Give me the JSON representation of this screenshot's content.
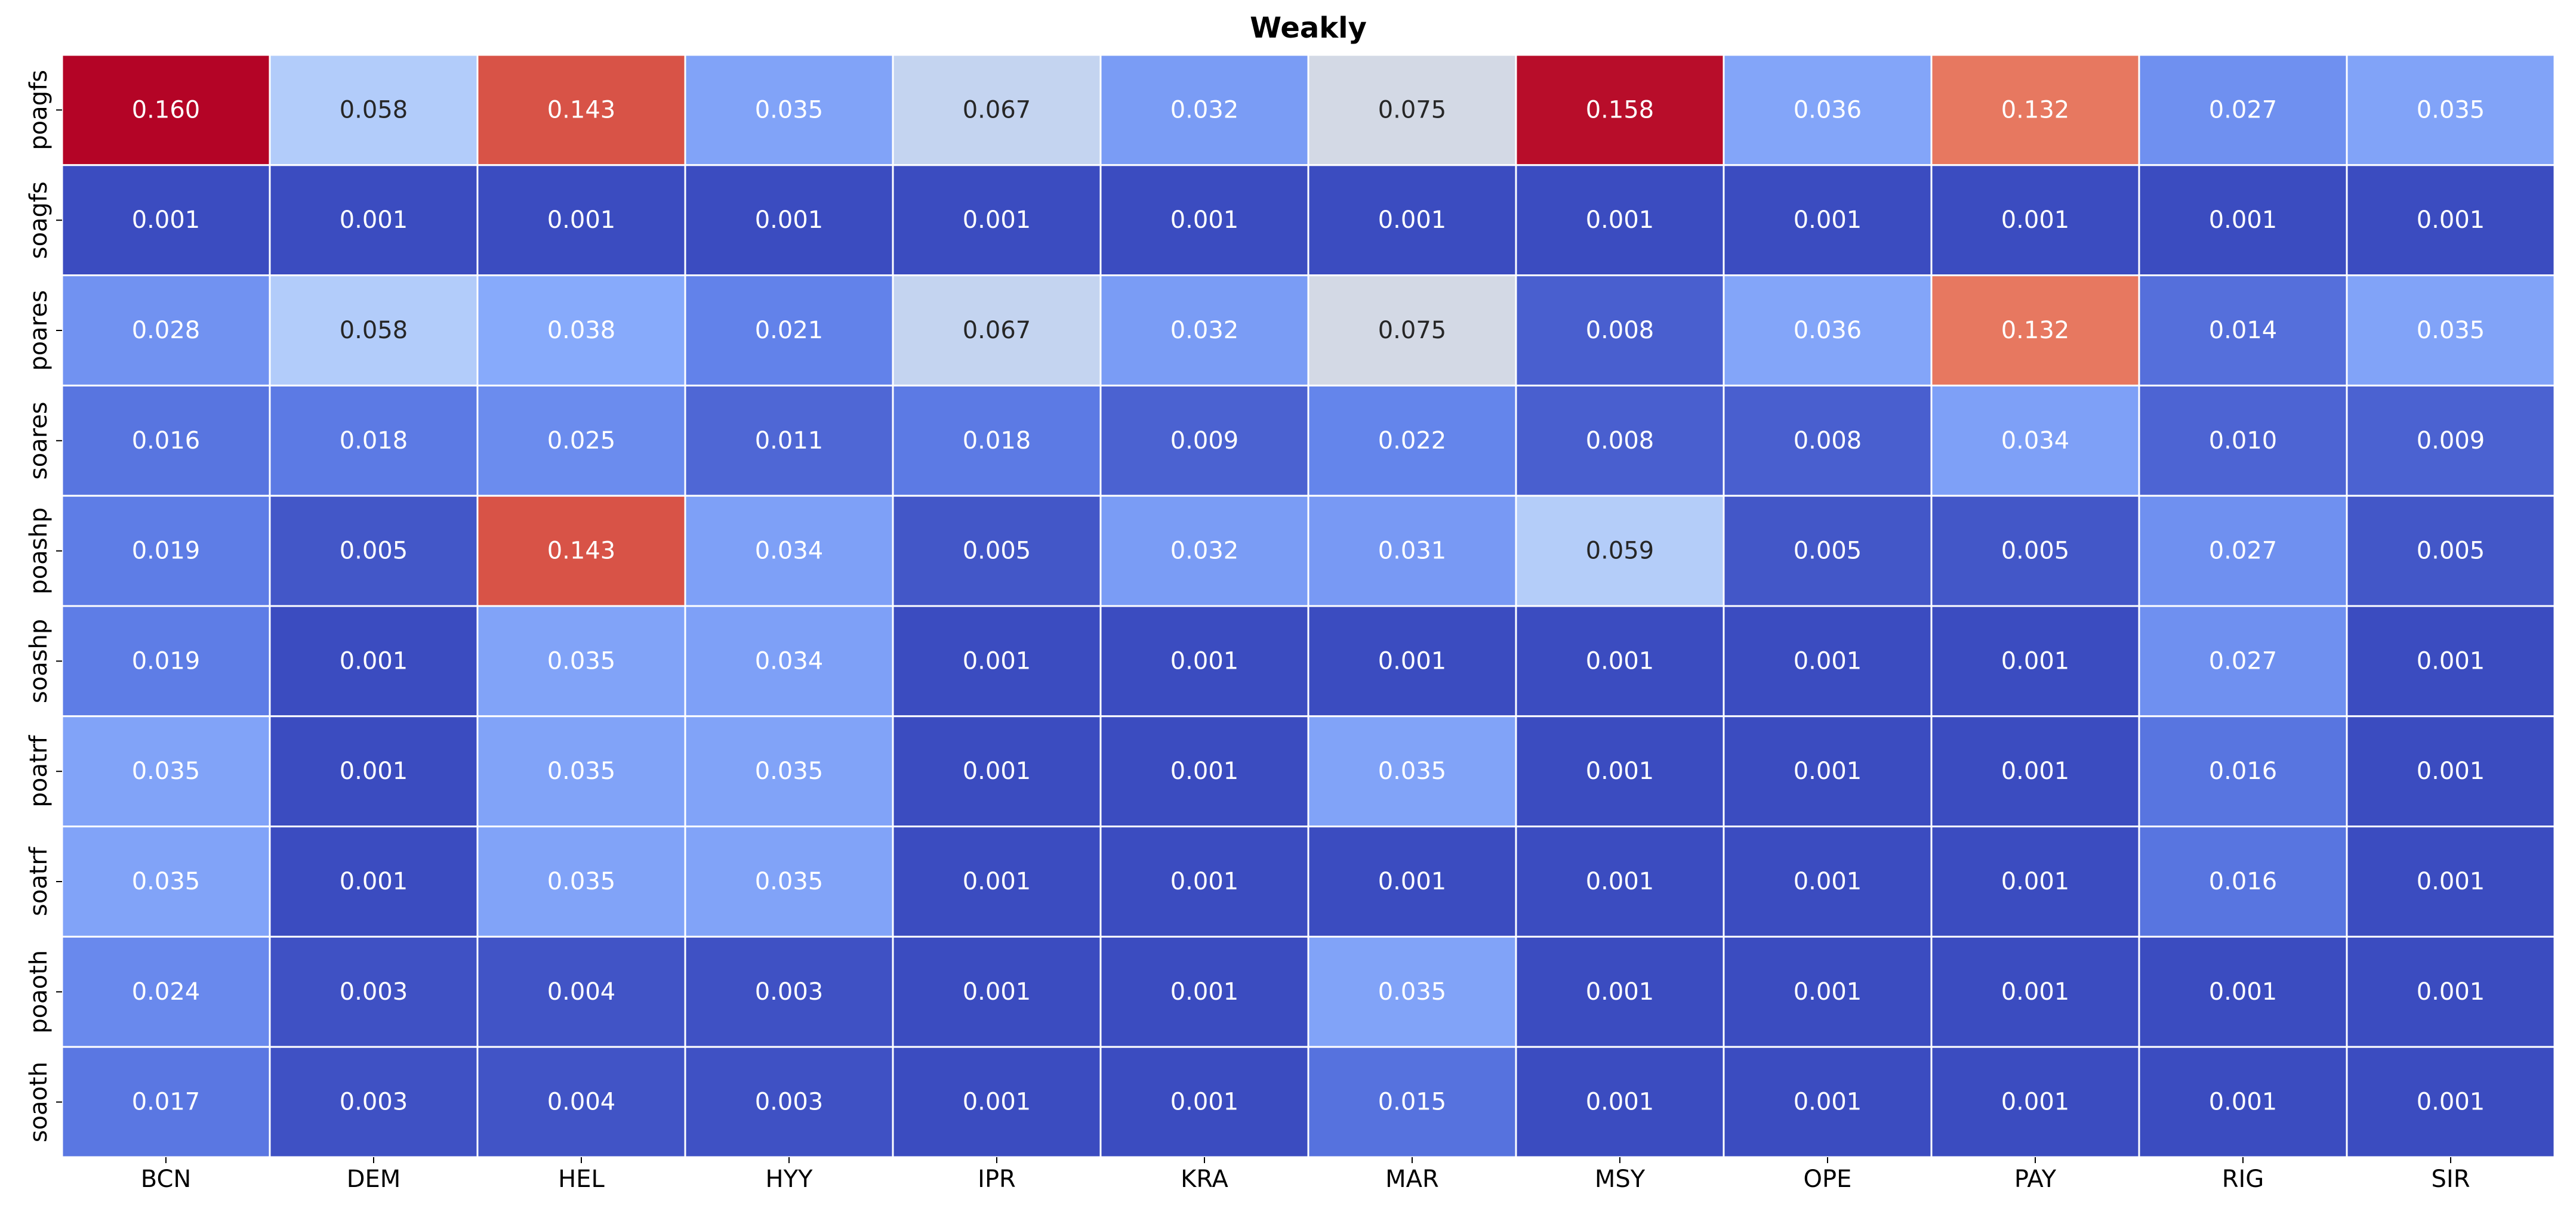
{
  "chart_data": {
    "type": "heatmap",
    "title": "Weakly",
    "xlabel": "",
    "ylabel": "",
    "colormap": "coolwarm",
    "value_range": [
      0.001,
      0.16
    ],
    "grid": false,
    "legend": "none",
    "colorbar": false,
    "cell_border_color": "#ffffff",
    "label_colors": {
      "dark": "#262626",
      "light": "#ffffff"
    },
    "columns": [
      "BCN",
      "DEM",
      "HEL",
      "HYY",
      "IPR",
      "KRA",
      "MAR",
      "MSY",
      "OPE",
      "PAY",
      "RIG",
      "SIR"
    ],
    "rows": [
      "poagfs",
      "soagfs",
      "poares",
      "soares",
      "poashp",
      "soashp",
      "poatrf",
      "soatrf",
      "poaoth",
      "soaoth"
    ],
    "values": [
      [
        0.16,
        0.058,
        0.143,
        0.035,
        0.067,
        0.032,
        0.075,
        0.158,
        0.036,
        0.132,
        0.027,
        0.035
      ],
      [
        0.001,
        0.001,
        0.001,
        0.001,
        0.001,
        0.001,
        0.001,
        0.001,
        0.001,
        0.001,
        0.001,
        0.001
      ],
      [
        0.028,
        0.058,
        0.038,
        0.021,
        0.067,
        0.032,
        0.075,
        0.008,
        0.036,
        0.132,
        0.014,
        0.035
      ],
      [
        0.016,
        0.018,
        0.025,
        0.011,
        0.018,
        0.009,
        0.022,
        0.008,
        0.008,
        0.034,
        0.01,
        0.009
      ],
      [
        0.019,
        0.005,
        0.143,
        0.034,
        0.005,
        0.032,
        0.031,
        0.059,
        0.005,
        0.005,
        0.027,
        0.005
      ],
      [
        0.019,
        0.001,
        0.035,
        0.034,
        0.001,
        0.001,
        0.001,
        0.001,
        0.001,
        0.001,
        0.027,
        0.001
      ],
      [
        0.035,
        0.001,
        0.035,
        0.035,
        0.001,
        0.001,
        0.035,
        0.001,
        0.001,
        0.001,
        0.016,
        0.001
      ],
      [
        0.035,
        0.001,
        0.035,
        0.035,
        0.001,
        0.001,
        0.001,
        0.001,
        0.001,
        0.001,
        0.016,
        0.001
      ],
      [
        0.024,
        0.003,
        0.004,
        0.003,
        0.001,
        0.001,
        0.035,
        0.001,
        0.001,
        0.001,
        0.001,
        0.001
      ],
      [
        0.017,
        0.003,
        0.004,
        0.003,
        0.001,
        0.001,
        0.015,
        0.001,
        0.001,
        0.001,
        0.001,
        0.001
      ]
    ],
    "value_labels": [
      [
        "0.160",
        "0.058",
        "0.143",
        "0.035",
        "0.067",
        "0.032",
        "0.075",
        "0.158",
        "0.036",
        "0.132",
        "0.027",
        "0.035"
      ],
      [
        "0.001",
        "0.001",
        "0.001",
        "0.001",
        "0.001",
        "0.001",
        "0.001",
        "0.001",
        "0.001",
        "0.001",
        "0.001",
        "0.001"
      ],
      [
        "0.028",
        "0.058",
        "0.038",
        "0.021",
        "0.067",
        "0.032",
        "0.075",
        "0.008",
        "0.036",
        "0.132",
        "0.014",
        "0.035"
      ],
      [
        "0.016",
        "0.018",
        "0.025",
        "0.011",
        "0.018",
        "0.009",
        "0.022",
        "0.008",
        "0.008",
        "0.034",
        "0.010",
        "0.009"
      ],
      [
        "0.019",
        "0.005",
        "0.143",
        "0.034",
        "0.005",
        "0.032",
        "0.031",
        "0.059",
        "0.005",
        "0.005",
        "0.027",
        "0.005"
      ],
      [
        "0.019",
        "0.001",
        "0.035",
        "0.034",
        "0.001",
        "0.001",
        "0.001",
        "0.001",
        "0.001",
        "0.001",
        "0.027",
        "0.001"
      ],
      [
        "0.035",
        "0.001",
        "0.035",
        "0.035",
        "0.001",
        "0.001",
        "0.035",
        "0.001",
        "0.001",
        "0.001",
        "0.016",
        "0.001"
      ],
      [
        "0.035",
        "0.001",
        "0.035",
        "0.035",
        "0.001",
        "0.001",
        "0.001",
        "0.001",
        "0.001",
        "0.001",
        "0.016",
        "0.001"
      ],
      [
        "0.024",
        "0.003",
        "0.004",
        "0.003",
        "0.001",
        "0.001",
        "0.035",
        "0.001",
        "0.001",
        "0.001",
        "0.001",
        "0.001"
      ],
      [
        "0.017",
        "0.003",
        "0.004",
        "0.003",
        "0.001",
        "0.001",
        "0.015",
        "0.001",
        "0.001",
        "0.001",
        "0.001",
        "0.001"
      ]
    ]
  }
}
